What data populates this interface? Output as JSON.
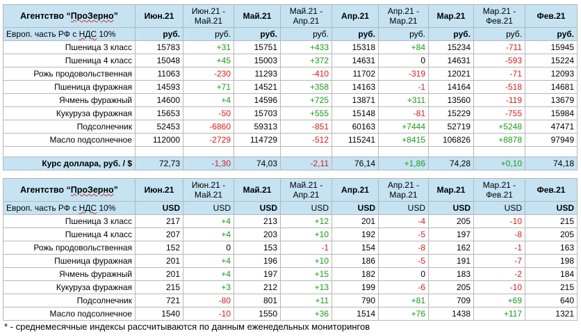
{
  "rub_table": {
    "header": {
      "agency_prefix": "Агентство “",
      "agency_brand": "ПроЗерно",
      "agency_suffix": "”",
      "cols": [
        {
          "l1": "Июн.21",
          "l2": "",
          "chg": false
        },
        {
          "l1": "Июн.21 -",
          "l2": "Май.21",
          "chg": true
        },
        {
          "l1": "Май.21",
          "l2": "",
          "chg": false
        },
        {
          "l1": "Май.21 -",
          "l2": "Апр.21",
          "chg": true
        },
        {
          "l1": "Апр.21",
          "l2": "",
          "chg": false
        },
        {
          "l1": "Апр.21 -",
          "l2": "Мар.21",
          "chg": true
        },
        {
          "l1": "Мар.21",
          "l2": "",
          "chg": false
        },
        {
          "l1": "Мар.21 -",
          "l2": "Фев.21",
          "chg": true
        },
        {
          "l1": "Фев.21",
          "l2": "",
          "chg": false
        }
      ]
    },
    "unit_label_pre": "Европ. часть РФ с ",
    "unit_label_nds": "НДС",
    "unit_label_post": " 10%",
    "units": [
      "руб.",
      "руб.",
      "руб.",
      "руб.",
      "руб.",
      "руб.",
      "руб.",
      "руб.",
      "руб."
    ],
    "rows": [
      {
        "name": "Пшеница 3 класс",
        "cells": [
          "15783",
          "+31",
          "15751",
          "+433",
          "15318",
          "+84",
          "15234",
          "-711",
          "15945"
        ]
      },
      {
        "name": "Пшеница 4 класс",
        "cells": [
          "15048",
          "+45",
          "15003",
          "+372",
          "14631",
          "0",
          "14631",
          "-593",
          "15224"
        ]
      },
      {
        "name": "Рожь продовольственная",
        "cells": [
          "11063",
          "-230",
          "11293",
          "-410",
          "11702",
          "-319",
          "12021",
          "-71",
          "12093"
        ]
      },
      {
        "name": "Пшеница фуражная",
        "cells": [
          "14593",
          "+71",
          "14521",
          "+358",
          "14163",
          "-1",
          "14164",
          "-518",
          "14681"
        ]
      },
      {
        "name": "Ячмень фуражный",
        "cells": [
          "14600",
          "+4",
          "14596",
          "+725",
          "13871",
          "+311",
          "13560",
          "-119",
          "13679"
        ]
      },
      {
        "name": "Кукуруза фуражная",
        "cells": [
          "15653",
          "-50",
          "15703",
          "+555",
          "15148",
          "-81",
          "15229",
          "-755",
          "15984"
        ]
      },
      {
        "name": "Подсолнечник",
        "cells": [
          "52453",
          "-6860",
          "59313",
          "-851",
          "60163",
          "+7444",
          "52719",
          "+5248",
          "47471"
        ]
      },
      {
        "name": "Масло подсолнечное",
        "cells": [
          "112000",
          "-2729",
          "114729",
          "-512",
          "115241",
          "+8415",
          "106826",
          "+8878",
          "97949"
        ]
      }
    ],
    "rate": {
      "label": "Курс доллара, руб. / $",
      "cells": [
        "72,73",
        "-1,30",
        "74,03",
        "-2,11",
        "76,14",
        "+1,86",
        "74,28",
        "+0,10",
        "74,18"
      ]
    }
  },
  "usd_table": {
    "units": [
      "USD",
      "USD",
      "USD",
      "USD",
      "USD",
      "USD",
      "USD",
      "USD",
      "USD"
    ],
    "rows": [
      {
        "name": "Пшеница 3 класс",
        "cells": [
          "217",
          "+4",
          "213",
          "+12",
          "201",
          "-4",
          "205",
          "-10",
          "215"
        ]
      },
      {
        "name": "Пшеница 4 класс",
        "cells": [
          "207",
          "+4",
          "203",
          "+10",
          "192",
          "-5",
          "197",
          "-8",
          "205"
        ]
      },
      {
        "name": "Рожь продовольственная",
        "cells": [
          "152",
          "0",
          "153",
          "-1",
          "154",
          "-8",
          "162",
          "-1",
          "163"
        ]
      },
      {
        "name": "Пшеница фуражная",
        "cells": [
          "201",
          "+4",
          "196",
          "+10",
          "186",
          "-5",
          "191",
          "-7",
          "198"
        ]
      },
      {
        "name": "Ячмень фуражный",
        "cells": [
          "201",
          "+4",
          "197",
          "+15",
          "182",
          "0",
          "183",
          "-2",
          "184"
        ]
      },
      {
        "name": "Кукуруза фуражная",
        "cells": [
          "215",
          "+3",
          "212",
          "+13",
          "199",
          "-6",
          "205",
          "-10",
          "215"
        ]
      },
      {
        "name": "Подсолнечник",
        "cells": [
          "721",
          "-80",
          "801",
          "+11",
          "790",
          "+81",
          "709",
          "+69",
          "640"
        ]
      },
      {
        "name": "Масло подсолнечное",
        "cells": [
          "1540",
          "-10",
          "1550",
          "+36",
          "1514",
          "+76",
          "1438",
          "+117",
          "1321"
        ]
      }
    ]
  },
  "footnote": "* - среднемесячные индексы рассчитываются по данным еженедельных мониторингов",
  "colors": {
    "header_bg": "#c5e3f2",
    "positive": "#1a9a1a",
    "negative": "#d41c1c",
    "border": "#b7b7b7"
  }
}
